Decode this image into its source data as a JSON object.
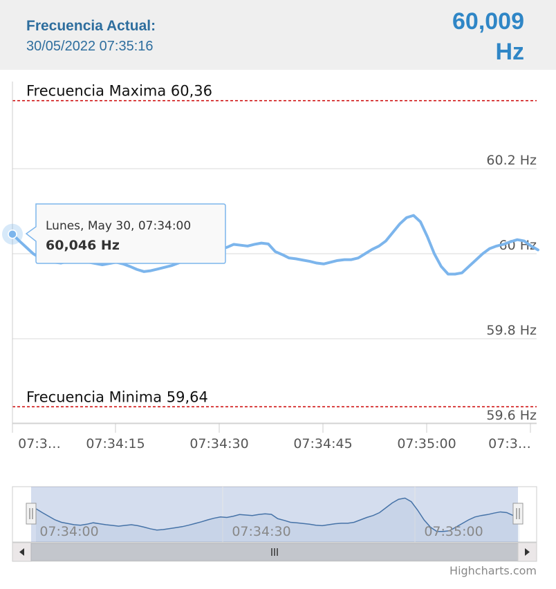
{
  "header": {
    "label": "Frecuencia Actual:",
    "timestamp": "30/05/2022 07:35:16",
    "value": "60,009",
    "unit": "Hz"
  },
  "tooltip": {
    "date": "Lunes, May 30, 07:34:00",
    "value": "60,046 Hz"
  },
  "credits": "Highcharts.com",
  "colors": {
    "series": "#7cb5ec",
    "navigator_series": "#4572a7",
    "plot_line": "#cc0000",
    "header_text": "#2e6e9e",
    "value_text": "#2f86c6"
  },
  "chart_data": {
    "type": "line",
    "ylim": [
      59.6,
      60.4
    ],
    "y_ticks": [
      {
        "value": 60.2,
        "label": "60.2 Hz"
      },
      {
        "value": 60.0,
        "label": "60 Hz"
      },
      {
        "value": 59.8,
        "label": "59.8 Hz"
      },
      {
        "value": 59.6,
        "label": "59.6 Hz"
      }
    ],
    "x_tick_labels": [
      "07:3…",
      "07:34:15",
      "07:34:30",
      "07:34:45",
      "07:35:00",
      "07:3…"
    ],
    "navigator_labels": [
      "07:34:00",
      "07:34:30",
      "07:35:00"
    ],
    "plot_lines": [
      {
        "label": "Frecuencia Maxima 60,36",
        "value": 60.36
      },
      {
        "label": "Frecuencia Minima 59,64",
        "value": 59.64
      }
    ],
    "series": [
      {
        "x": [
          "07:34:00",
          "07:34:01",
          "07:34:02",
          "07:34:03",
          "07:34:04",
          "07:34:05",
          "07:34:06",
          "07:34:07",
          "07:34:08",
          "07:34:09",
          "07:34:10",
          "07:34:11",
          "07:34:12",
          "07:34:13",
          "07:34:14",
          "07:34:15",
          "07:34:16",
          "07:34:17",
          "07:34:18",
          "07:34:19",
          "07:34:20",
          "07:34:21",
          "07:34:22",
          "07:34:23",
          "07:34:24",
          "07:34:25",
          "07:34:26",
          "07:34:27",
          "07:34:28",
          "07:34:29",
          "07:34:30",
          "07:34:31",
          "07:34:32",
          "07:34:33",
          "07:34:34",
          "07:34:35",
          "07:34:36",
          "07:34:37",
          "07:34:38",
          "07:34:39",
          "07:34:40",
          "07:34:41",
          "07:34:42",
          "07:34:43",
          "07:34:44",
          "07:34:45",
          "07:34:46",
          "07:34:47",
          "07:34:48",
          "07:34:49",
          "07:34:50",
          "07:34:51",
          "07:34:52",
          "07:34:53",
          "07:34:54",
          "07:34:55",
          "07:34:56",
          "07:34:57",
          "07:34:58",
          "07:34:59",
          "07:35:00",
          "07:35:01",
          "07:35:02",
          "07:35:03",
          "07:35:04",
          "07:35:05",
          "07:35:06",
          "07:35:07",
          "07:35:08",
          "07:35:09",
          "07:35:10",
          "07:35:11",
          "07:35:12",
          "07:35:13",
          "07:35:14",
          "07:35:15",
          "07:35:16"
        ],
        "values": [
          60.046,
          60.03,
          60.015,
          60.0,
          59.99,
          59.985,
          59.98,
          59.978,
          59.982,
          59.988,
          59.984,
          59.98,
          59.977,
          59.974,
          59.977,
          59.98,
          59.976,
          59.97,
          59.963,
          59.958,
          59.96,
          59.964,
          59.968,
          59.972,
          59.978,
          59.985,
          59.992,
          60.0,
          60.007,
          60.012,
          60.01,
          60.015,
          60.022,
          60.02,
          60.018,
          60.022,
          60.025,
          60.023,
          60.005,
          59.998,
          59.99,
          59.988,
          59.985,
          59.982,
          59.978,
          59.976,
          59.98,
          59.984,
          59.986,
          59.986,
          59.99,
          60.0,
          60.01,
          60.018,
          60.03,
          60.05,
          60.07,
          60.085,
          60.09,
          60.075,
          60.04,
          60.0,
          59.97,
          59.952,
          59.952,
          59.955,
          59.97,
          59.985,
          60.0,
          60.012,
          60.018,
          60.022,
          60.028,
          60.033,
          60.03,
          60.018,
          60.009
        ]
      }
    ]
  }
}
